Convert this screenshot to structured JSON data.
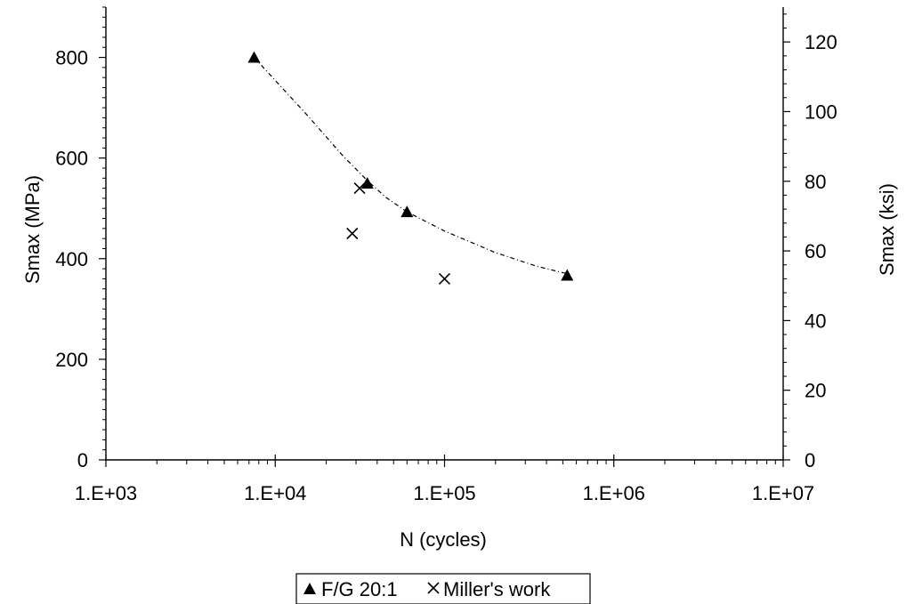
{
  "chart_data": {
    "type": "scatter",
    "title": "",
    "xlabel": "N (cycles)",
    "ylabel": "Smax (MPa)",
    "y2label": "Smax (ksi)",
    "x_scale": "log",
    "xlim": [
      1000,
      10000000
    ],
    "ylim": [
      0,
      900
    ],
    "y2lim": [
      0,
      130
    ],
    "x_tick_labels": [
      "1.E+03",
      "1.E+04",
      "1.E+05",
      "1.E+06",
      "1.E+07"
    ],
    "x_tick_values": [
      1000,
      10000,
      100000,
      1000000,
      10000000
    ],
    "y_tick_labels": [
      "0",
      "200",
      "400",
      "600",
      "800"
    ],
    "y_tick_values": [
      0,
      200,
      400,
      600,
      800
    ],
    "y2_tick_labels": [
      "0",
      "20",
      "40",
      "60",
      "80",
      "100",
      "120"
    ],
    "y2_tick_values": [
      0,
      20,
      40,
      60,
      80,
      100,
      120
    ],
    "grid": false,
    "legend_position": "bottom",
    "series": [
      {
        "name": "F/G 20:1",
        "marker": "triangle",
        "color": "#000000",
        "x": [
          7500,
          35000,
          60000,
          530000
        ],
        "y": [
          800,
          550,
          493,
          367
        ]
      },
      {
        "name": "Miller's work",
        "marker": "x",
        "color": "#000000",
        "x": [
          28500,
          31500,
          100000
        ],
        "y": [
          450,
          540,
          360
        ]
      }
    ],
    "trendline": {
      "series": "F/G 20:1",
      "style": "dash-dot",
      "x": [
        7500,
        15000,
        25000,
        35000,
        45000,
        60000,
        100000,
        200000,
        350000,
        530000
      ],
      "y": [
        800,
        690,
        605,
        555,
        522,
        493,
        455,
        412,
        385,
        370
      ]
    }
  }
}
